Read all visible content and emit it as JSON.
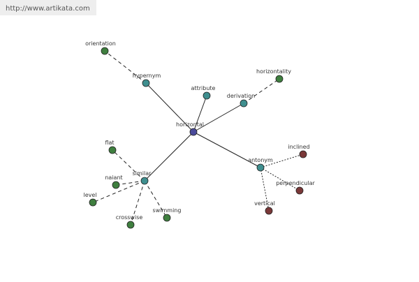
{
  "header": {
    "url": "http://www.artikata.com"
  },
  "nodes": [
    {
      "label": "horizontal"
    },
    {
      "label": "hypernym"
    },
    {
      "label": "orientation"
    },
    {
      "label": "attribute"
    },
    {
      "label": "derivation"
    },
    {
      "label": "horizontality"
    },
    {
      "label": "antonym"
    },
    {
      "label": "inclined"
    },
    {
      "label": "perpendicular"
    },
    {
      "label": "vertical"
    },
    {
      "label": "similar"
    },
    {
      "label": "flat"
    },
    {
      "label": "naiant"
    },
    {
      "label": "level"
    },
    {
      "label": "crosswise"
    },
    {
      "label": "swimming"
    }
  ]
}
